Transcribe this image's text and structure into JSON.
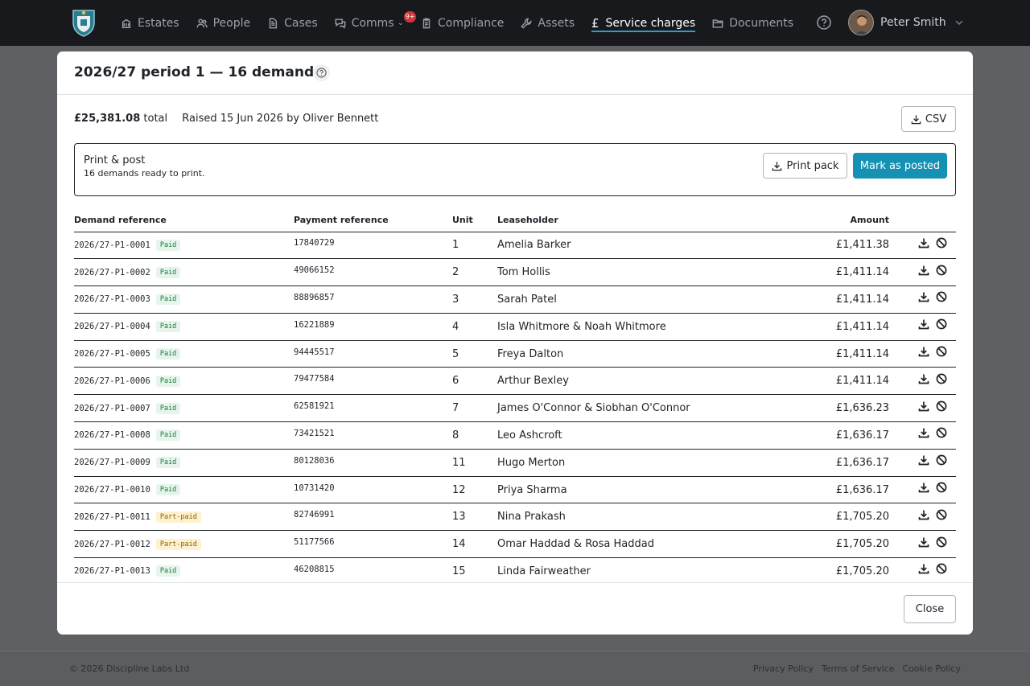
{
  "nav": {
    "items": [
      {
        "label": "Estates",
        "icon": "building-icon"
      },
      {
        "label": "People",
        "icon": "people-icon"
      },
      {
        "label": "Cases",
        "icon": "document-icon"
      },
      {
        "label": "Comms",
        "icon": "chat-icon",
        "badge": "9+"
      },
      {
        "label": "Compliance",
        "icon": "clipboard-icon"
      },
      {
        "label": "Assets",
        "icon": "wrench-icon"
      },
      {
        "label": "Service charges",
        "icon": "pound-icon",
        "active": true
      },
      {
        "label": "Documents",
        "icon": "folder-icon"
      }
    ],
    "user_name": "Peter Smith"
  },
  "modal": {
    "title": "2026/27 period 1 — 16 demands",
    "total": "£25,381.08",
    "total_suffix": "total",
    "raised": "Raised 15 Jun 2026 by Oliver Bennett",
    "csv_label": "CSV",
    "print_title": "Print & post",
    "print_sub": "16 demands ready to print.",
    "print_pack_label": "Print pack",
    "mark_posted_label": "Mark as posted",
    "close_label": "Close"
  },
  "table": {
    "headers": {
      "ref": "Demand reference",
      "pay": "Payment reference",
      "unit": "Unit",
      "lease": "Leaseholder",
      "amount": "Amount"
    },
    "rows": [
      {
        "ref": "2026/27-P1-0001",
        "status": "Paid",
        "pay": "17840729",
        "unit": "1",
        "lease": "Amelia Barker",
        "amount": "£1,411.38"
      },
      {
        "ref": "2026/27-P1-0002",
        "status": "Paid",
        "pay": "49066152",
        "unit": "2",
        "lease": "Tom Hollis",
        "amount": "£1,411.14"
      },
      {
        "ref": "2026/27-P1-0003",
        "status": "Paid",
        "pay": "88896857",
        "unit": "3",
        "lease": "Sarah Patel",
        "amount": "£1,411.14"
      },
      {
        "ref": "2026/27-P1-0004",
        "status": "Paid",
        "pay": "16221889",
        "unit": "4",
        "lease": "Isla Whitmore & Noah Whitmore",
        "amount": "£1,411.14"
      },
      {
        "ref": "2026/27-P1-0005",
        "status": "Paid",
        "pay": "94445517",
        "unit": "5",
        "lease": "Freya Dalton",
        "amount": "£1,411.14"
      },
      {
        "ref": "2026/27-P1-0006",
        "status": "Paid",
        "pay": "79477584",
        "unit": "6",
        "lease": "Arthur Bexley",
        "amount": "£1,411.14"
      },
      {
        "ref": "2026/27-P1-0007",
        "status": "Paid",
        "pay": "62581921",
        "unit": "7",
        "lease": "James O'Connor & Siobhan O'Connor",
        "amount": "£1,636.23"
      },
      {
        "ref": "2026/27-P1-0008",
        "status": "Paid",
        "pay": "73421521",
        "unit": "8",
        "lease": "Leo Ashcroft",
        "amount": "£1,636.17"
      },
      {
        "ref": "2026/27-P1-0009",
        "status": "Paid",
        "pay": "80128036",
        "unit": "11",
        "lease": "Hugo Merton",
        "amount": "£1,636.17"
      },
      {
        "ref": "2026/27-P1-0010",
        "status": "Paid",
        "pay": "10731420",
        "unit": "12",
        "lease": "Priya Sharma",
        "amount": "£1,636.17"
      },
      {
        "ref": "2026/27-P1-0011",
        "status": "Part-paid",
        "pay": "82746991",
        "unit": "13",
        "lease": "Nina Prakash",
        "amount": "£1,705.20"
      },
      {
        "ref": "2026/27-P1-0012",
        "status": "Part-paid",
        "pay": "51177566",
        "unit": "14",
        "lease": "Omar Haddad & Rosa Haddad",
        "amount": "£1,705.20"
      },
      {
        "ref": "2026/27-P1-0013",
        "status": "Paid",
        "pay": "46208815",
        "unit": "15",
        "lease": "Linda Fairweather",
        "amount": "£1,705.20"
      }
    ]
  },
  "footer": {
    "copyright": "© 2026 Discipline Labs Ltd",
    "links": [
      "Privacy Policy",
      "Terms of Service",
      "Cookie Policy"
    ]
  },
  "colors": {
    "nav_bg": "#17191d",
    "accent": "#1591b3",
    "paid_bg": "#e6f5ec",
    "part_paid_bg": "#fdf1cf",
    "badge": "#d4333b"
  }
}
